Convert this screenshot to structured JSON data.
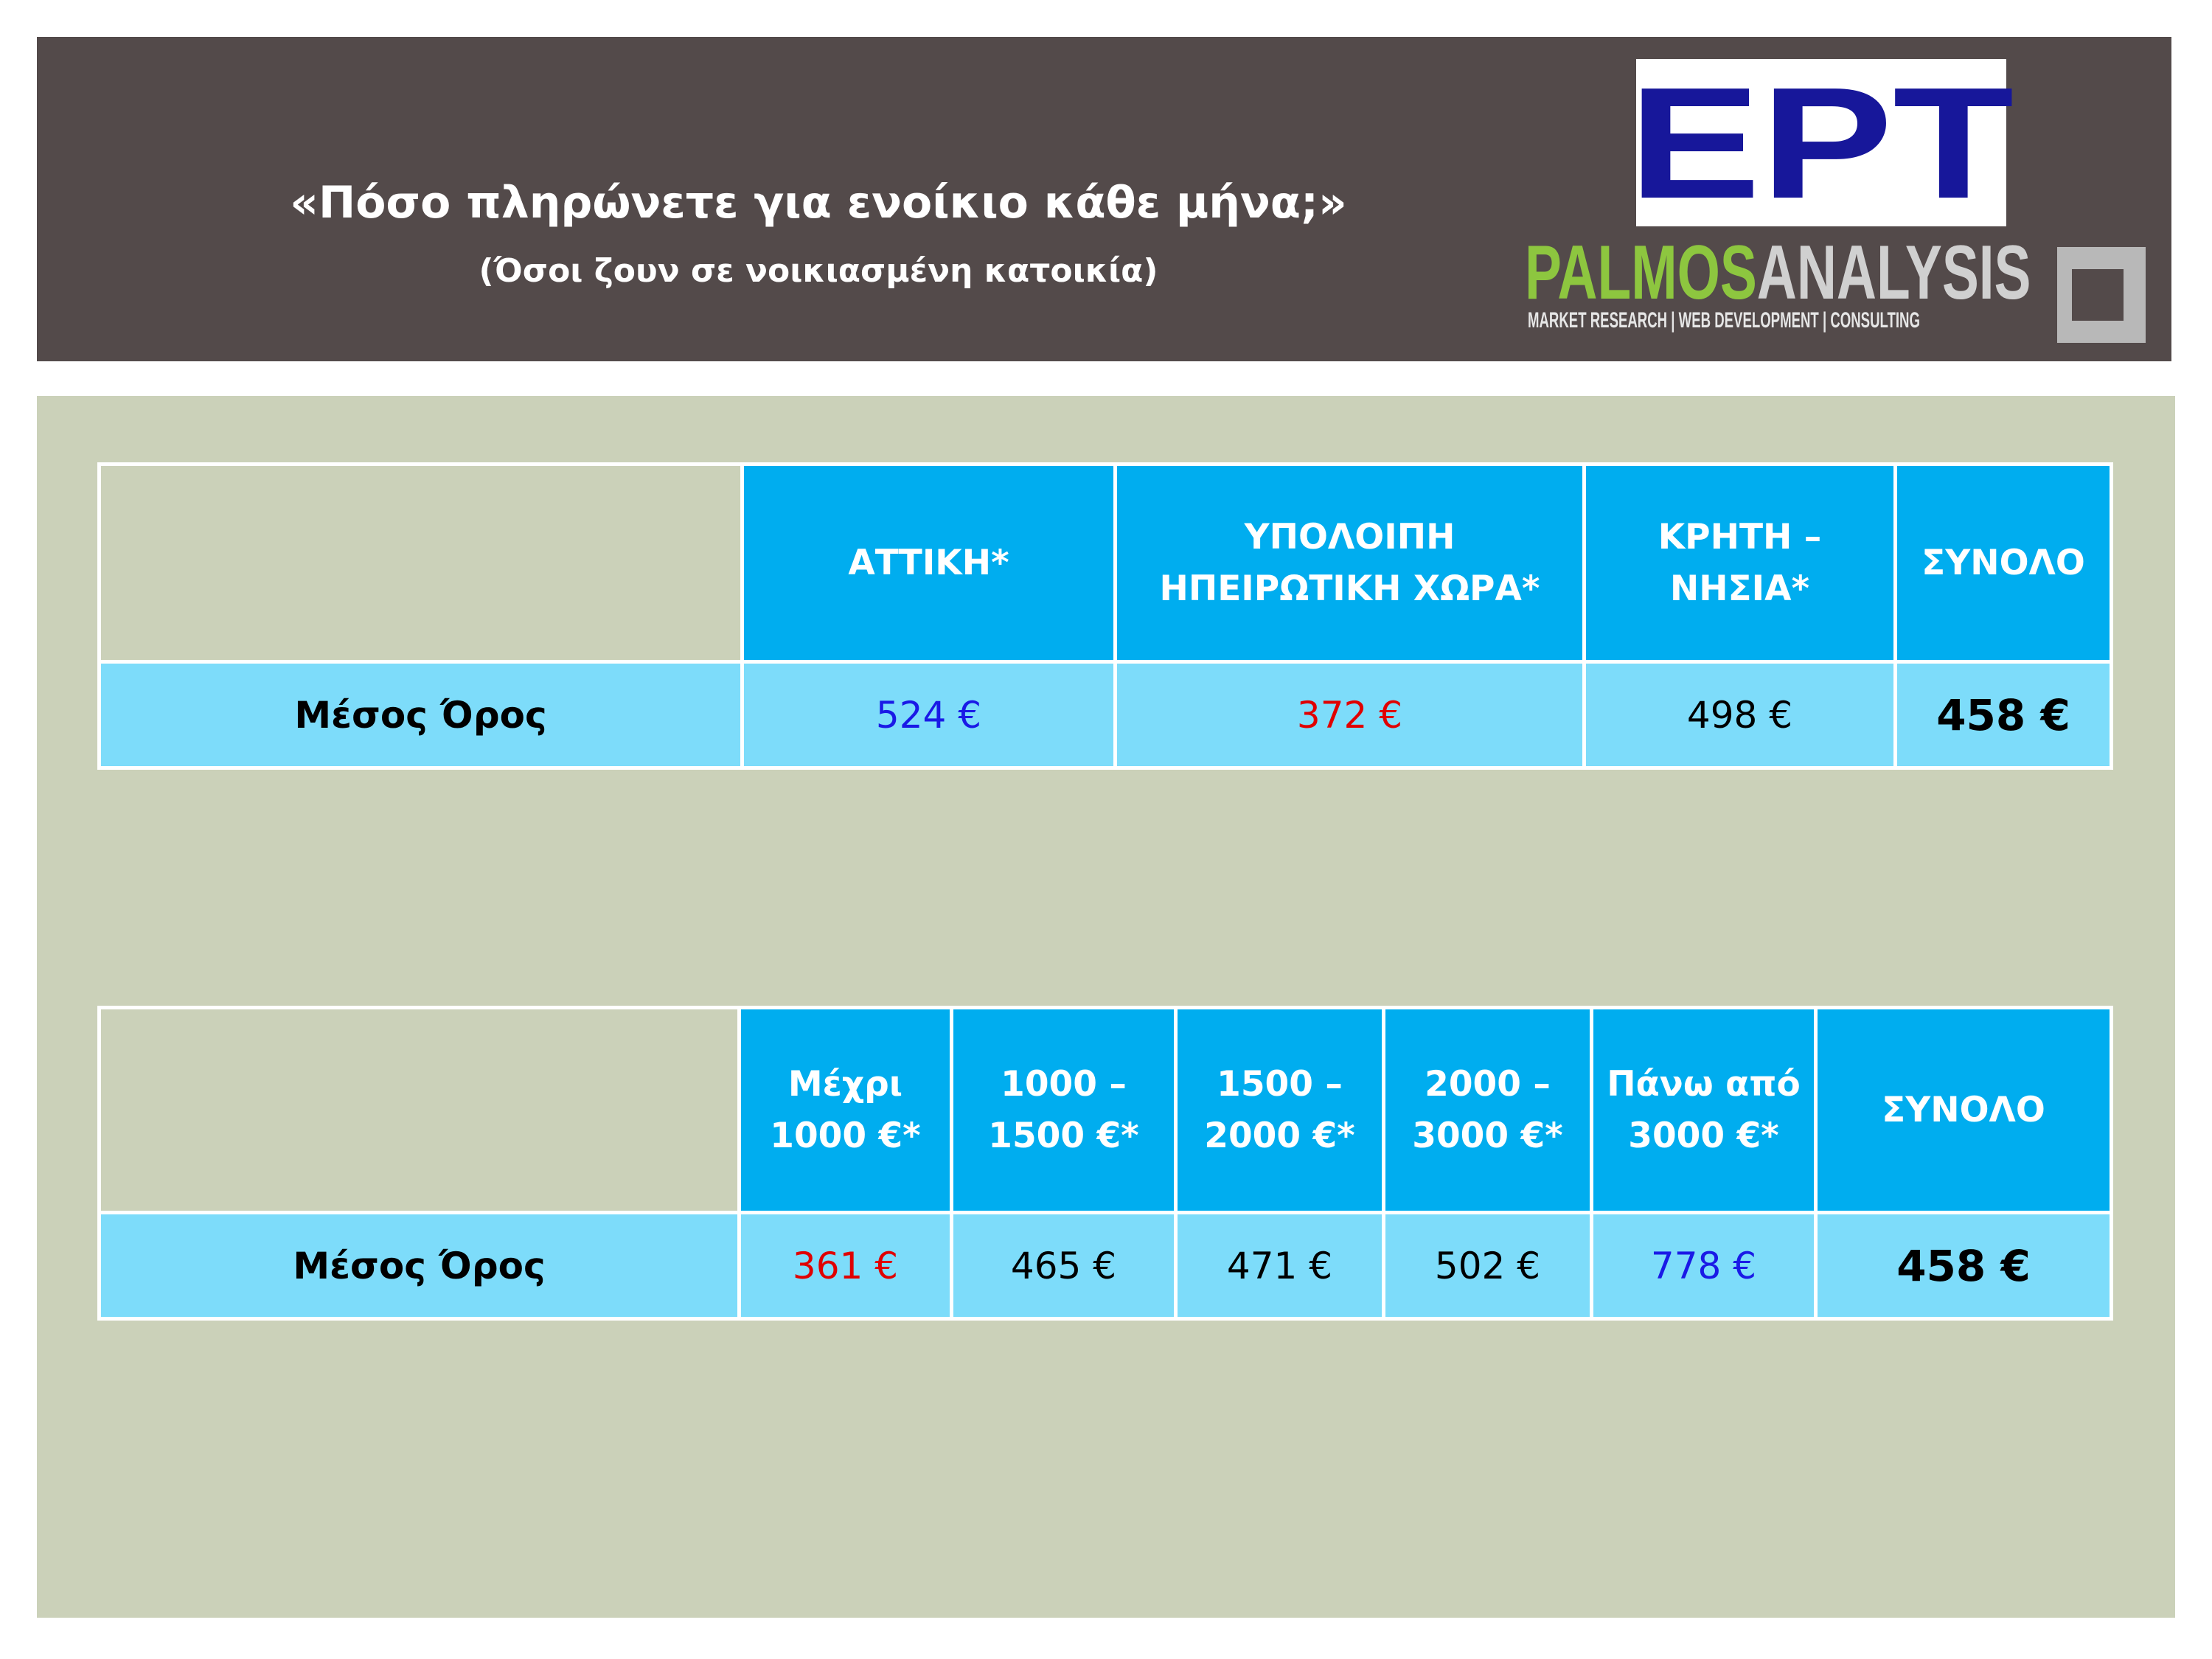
{
  "header": {
    "title": "«Πόσο πληρώνετε για ενοίκιο κάθε μήνα;»",
    "subtitle": "(Όσοι ζουν σε νοικιασμένη κατοικία)"
  },
  "logos": {
    "ert": "ΕΡΤ",
    "palmos": "PALMOS",
    "analysis": "ANALYSIS",
    "tagline": "MARKET RESEARCH | WEB DEVELOPMENT | CONSULTING"
  },
  "tables": [
    {
      "header": [
        "ΑΤΤΙΚΗ*",
        "ΥΠΟΛΟΙΠΗ ΗΠΕΙΡΩΤΙΚΗ ΧΩΡΑ*",
        "ΚΡΗΤΗ – ΝΗΣΙΑ*",
        "ΣΥΝΟΛΟ"
      ],
      "row": [
        "Μέσος Όρος",
        "524 €",
        "372 €",
        "498 €",
        "458 €"
      ]
    },
    {
      "header": [
        "Μέχρι 1000 €*",
        "1000 – 1500 €*",
        "1500 – 2000 €*",
        "2000 – 3000 €*",
        "Πάνω από 3000 €*",
        "ΣΥΝΟΛΟ"
      ],
      "row": [
        "Μέσος Όρος",
        "361 €",
        "465 €",
        "471 €",
        "502 €",
        "778 €",
        "458 €"
      ]
    }
  ]
}
